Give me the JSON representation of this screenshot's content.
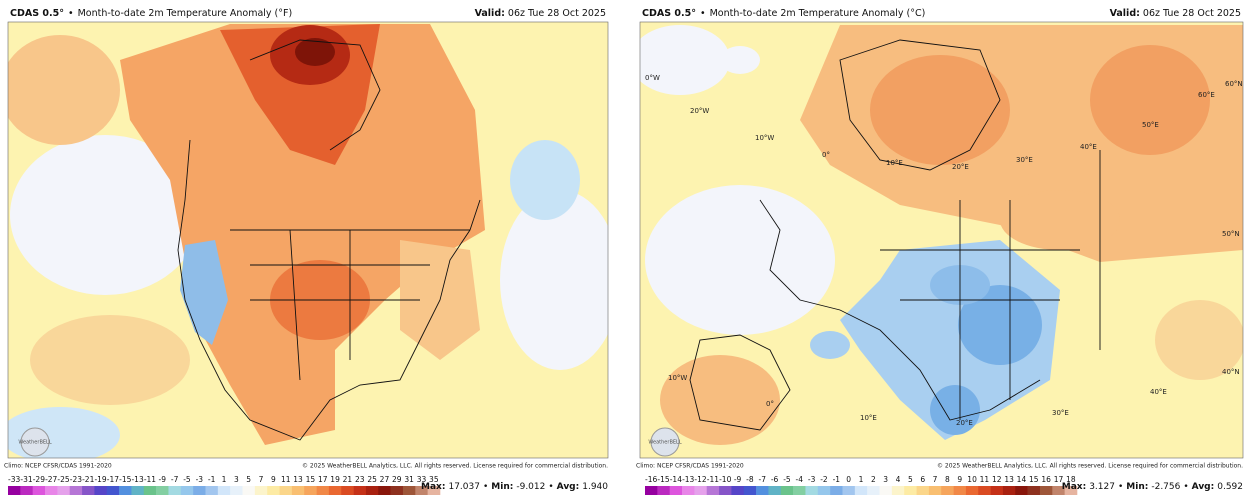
{
  "panels": [
    {
      "header": {
        "model": "CDAS 0.5°",
        "separator": "•",
        "title": "Month-to-date 2m Temperature Anomaly (°F)",
        "valid_label": "Valid:",
        "valid": "06z Tue 28 Oct 2025"
      },
      "map": {
        "watermark": "WeatherBELL"
      },
      "footer": {
        "climo": "Climo: NCEP CFSR/CDAS 1991-2020",
        "copyright": "© 2025 WeatherBELL Analytics, LLC. All rights reserved. License required for commercial distribution."
      },
      "colorbar": {
        "ticks": [
          -33,
          -31,
          -29,
          -27,
          -25,
          -23,
          -21,
          -19,
          -17,
          -15,
          -13,
          -11,
          -9,
          -7,
          -5,
          -3,
          -1,
          1,
          3,
          5,
          7,
          9,
          11,
          13,
          15,
          17,
          19,
          21,
          23,
          25,
          27,
          29,
          31,
          33,
          35
        ]
      },
      "stats": [
        {
          "label": "Max:",
          "value": "17.037"
        },
        {
          "label": "Min:",
          "value": "-9.012"
        },
        {
          "label": "Avg:",
          "value": "1.940"
        }
      ],
      "stat_separator": "•"
    },
    {
      "header": {
        "model": "CDAS 0.5°",
        "separator": "•",
        "title": "Month-to-date 2m Temperature Anomaly (°C)",
        "valid_label": "Valid:",
        "valid": "06z Tue 28 Oct 2025"
      },
      "map": {
        "watermark": "WeatherBELL",
        "labels": [
          "0°W",
          "20°W",
          "10°W",
          "0°",
          "10°E",
          "20°E",
          "30°E",
          "40°E",
          "50°E",
          "60°E",
          "60°N",
          "50°N",
          "40°N",
          "10°W",
          "0°",
          "10°E",
          "20°E",
          "30°E",
          "40°E"
        ]
      },
      "footer": {
        "climo": "Climo: NCEP CFSR/CDAS 1991-2020",
        "copyright": "© 2025 WeatherBELL Analytics, LLC. All rights reserved. License required for commercial distribution."
      },
      "colorbar": {
        "ticks": [
          -16,
          -15,
          -14,
          -13,
          -12,
          -11,
          -10,
          -9,
          -8,
          -7,
          -6,
          -5,
          -4,
          -3,
          -2,
          -1,
          0,
          1,
          2,
          3,
          4,
          5,
          6,
          7,
          8,
          9,
          10,
          11,
          12,
          13,
          14,
          15,
          16,
          17,
          18
        ]
      },
      "stats": [
        {
          "label": "Max:",
          "value": "3.127"
        },
        {
          "label": "Min:",
          "value": "-2.756"
        },
        {
          "label": "Avg:",
          "value": "0.592"
        }
      ],
      "stat_separator": "•"
    }
  ]
}
